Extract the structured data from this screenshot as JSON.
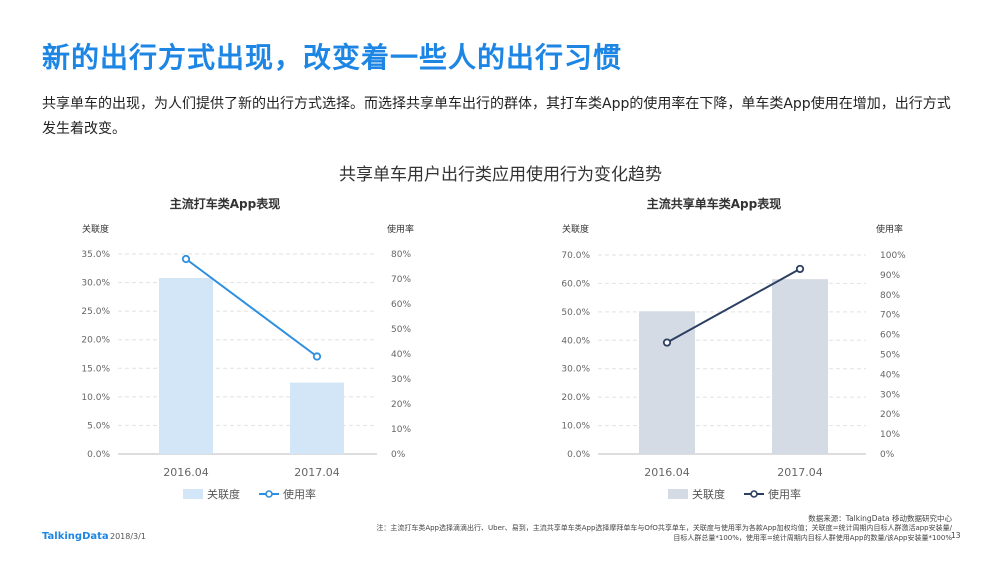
{
  "header": {
    "title": "新的出行方式出现，改变着一些人的出行习惯",
    "description": "共享单车的出现，为人们提供了新的出行方式选择。而选择共享单车出行的群体，其打车类App的使用率在下降，单车类App使用在增加，出行方式发生着改变。"
  },
  "section_title": "共享单车用户出行类应用使用行为变化趋势",
  "chart_data": [
    {
      "type": "bar",
      "title": "主流打车类App表现",
      "categories": [
        "2016.04",
        "2017.04"
      ],
      "left_axis_label": "关联度",
      "right_axis_label": "使用率",
      "left_ticks": [
        "35.0%",
        "30.0%",
        "25.0%",
        "20.0%",
        "15.0%",
        "10.0%",
        "5.0%",
        "0.0%"
      ],
      "right_ticks": [
        "80%",
        "70%",
        "60%",
        "50%",
        "40%",
        "30%",
        "20%",
        "10%",
        "0%"
      ],
      "ylim_left": [
        0,
        35
      ],
      "ylim_right": [
        0,
        80
      ],
      "series": [
        {
          "name": "关联度",
          "kind": "bar",
          "axis": "left",
          "values": [
            30.8,
            12.5
          ],
          "color": "#d3e6f8"
        },
        {
          "name": "使用率",
          "kind": "line",
          "axis": "right",
          "values": [
            78,
            39
          ],
          "color": "#2d8fe0"
        }
      ],
      "legend": "bottom"
    },
    {
      "type": "bar",
      "title": "主流共享单车类App表现",
      "categories": [
        "2016.04",
        "2017.04"
      ],
      "left_axis_label": "关联度",
      "right_axis_label": "使用率",
      "left_ticks": [
        "70.0%",
        "60.0%",
        "50.0%",
        "40.0%",
        "30.0%",
        "20.0%",
        "10.0%",
        "0.0%"
      ],
      "right_ticks": [
        "100%",
        "90%",
        "80%",
        "70%",
        "60%",
        "50%",
        "40%",
        "30%",
        "20%",
        "10%",
        "0%"
      ],
      "ylim_left": [
        0,
        70
      ],
      "ylim_right": [
        0,
        100
      ],
      "series": [
        {
          "name": "关联度",
          "kind": "bar",
          "axis": "left",
          "values": [
            50.2,
            61.5
          ],
          "color": "#d5dbe5"
        },
        {
          "name": "使用率",
          "kind": "line",
          "axis": "right",
          "values": [
            56,
            93
          ],
          "color": "#2b3f63"
        }
      ],
      "legend": "bottom"
    }
  ],
  "footer": {
    "logo": "TalkingData",
    "date": "2018/3/1",
    "source": "数据来源：TalkingData 移动数据研究中心",
    "note": "注：主流打车类App选择滴滴出行、Uber、易到，主流共享单车类App选择摩拜单车与OfO共享单车，关联度与使用率为各款App加权均值；关联度=统计周期内目标人群激活app安装量/目标人群总量*100%，使用率=统计周期内目标人群使用App的数量/该App安装量*100%",
    "page": "13"
  }
}
